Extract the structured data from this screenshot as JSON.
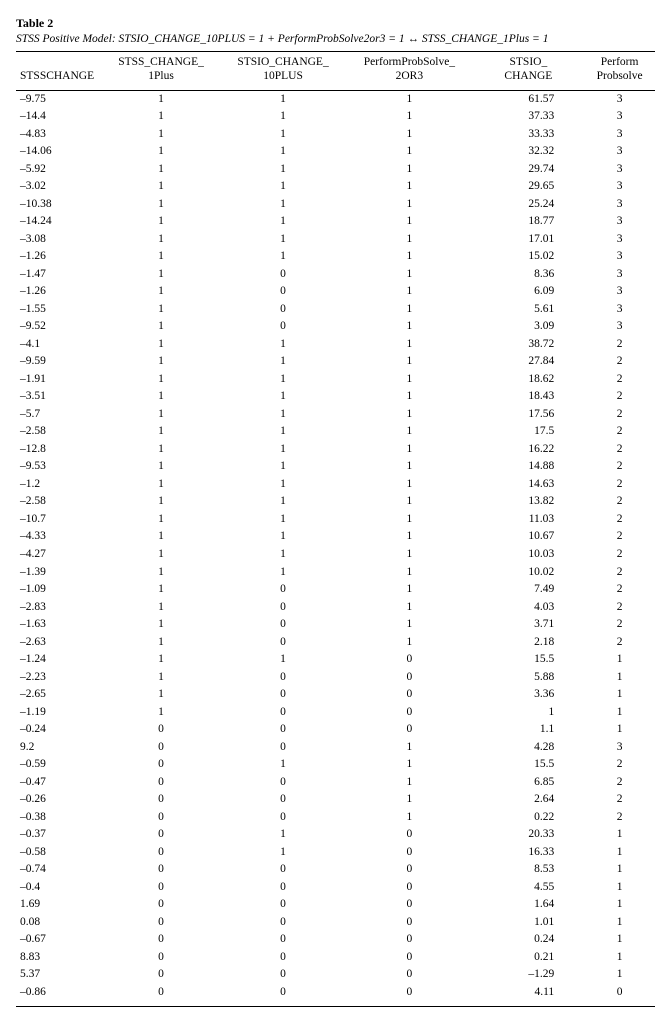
{
  "table": {
    "label": "Table 2",
    "caption": "STSS Positive Model: STSIO_CHANGE_10PLUS = 1 + PerformProbSolve2or3 = 1 ↔ STSS_CHANGE_1Plus = 1",
    "columns": [
      "STSSCHANGE",
      "STSS_CHANGE_ 1Plus",
      "STSIO_CHANGE_ 10PLUS",
      "PerformProbSolve_ 2OR3",
      "STSIO_ CHANGE",
      "Perform Probsolve"
    ],
    "col_align": [
      "left",
      "center",
      "center",
      "center",
      "right",
      "center"
    ],
    "rows": [
      [
        "–9.75",
        "1",
        "1",
        "1",
        "61.57",
        "3"
      ],
      [
        "–14.4",
        "1",
        "1",
        "1",
        "37.33",
        "3"
      ],
      [
        "–4.83",
        "1",
        "1",
        "1",
        "33.33",
        "3"
      ],
      [
        "–14.06",
        "1",
        "1",
        "1",
        "32.32",
        "3"
      ],
      [
        "–5.92",
        "1",
        "1",
        "1",
        "29.74",
        "3"
      ],
      [
        "–3.02",
        "1",
        "1",
        "1",
        "29.65",
        "3"
      ],
      [
        "–10.38",
        "1",
        "1",
        "1",
        "25.24",
        "3"
      ],
      [
        "–14.24",
        "1",
        "1",
        "1",
        "18.77",
        "3"
      ],
      [
        "–3.08",
        "1",
        "1",
        "1",
        "17.01",
        "3"
      ],
      [
        "–1.26",
        "1",
        "1",
        "1",
        "15.02",
        "3"
      ],
      [
        "–1.47",
        "1",
        "0",
        "1",
        "8.36",
        "3"
      ],
      [
        "–1.26",
        "1",
        "0",
        "1",
        "6.09",
        "3"
      ],
      [
        "–1.55",
        "1",
        "0",
        "1",
        "5.61",
        "3"
      ],
      [
        "–9.52",
        "1",
        "0",
        "1",
        "3.09",
        "3"
      ],
      [
        "–4.1",
        "1",
        "1",
        "1",
        "38.72",
        "2"
      ],
      [
        "–9.59",
        "1",
        "1",
        "1",
        "27.84",
        "2"
      ],
      [
        "–1.91",
        "1",
        "1",
        "1",
        "18.62",
        "2"
      ],
      [
        "–3.51",
        "1",
        "1",
        "1",
        "18.43",
        "2"
      ],
      [
        "–5.7",
        "1",
        "1",
        "1",
        "17.56",
        "2"
      ],
      [
        "–2.58",
        "1",
        "1",
        "1",
        "17.5",
        "2"
      ],
      [
        "–12.8",
        "1",
        "1",
        "1",
        "16.22",
        "2"
      ],
      [
        "–9.53",
        "1",
        "1",
        "1",
        "14.88",
        "2"
      ],
      [
        "–1.2",
        "1",
        "1",
        "1",
        "14.63",
        "2"
      ],
      [
        "–2.58",
        "1",
        "1",
        "1",
        "13.82",
        "2"
      ],
      [
        "–10.7",
        "1",
        "1",
        "1",
        "11.03",
        "2"
      ],
      [
        "–4.33",
        "1",
        "1",
        "1",
        "10.67",
        "2"
      ],
      [
        "–4.27",
        "1",
        "1",
        "1",
        "10.03",
        "2"
      ],
      [
        "–1.39",
        "1",
        "1",
        "1",
        "10.02",
        "2"
      ],
      [
        "–1.09",
        "1",
        "0",
        "1",
        "7.49",
        "2"
      ],
      [
        "–2.83",
        "1",
        "0",
        "1",
        "4.03",
        "2"
      ],
      [
        "–1.63",
        "1",
        "0",
        "1",
        "3.71",
        "2"
      ],
      [
        "–2.63",
        "1",
        "0",
        "1",
        "2.18",
        "2"
      ],
      [
        "–1.24",
        "1",
        "1",
        "0",
        "15.5",
        "1"
      ],
      [
        "–2.23",
        "1",
        "0",
        "0",
        "5.88",
        "1"
      ],
      [
        "–2.65",
        "1",
        "0",
        "0",
        "3.36",
        "1"
      ],
      [
        "–1.19",
        "1",
        "0",
        "0",
        "1",
        "1"
      ],
      [
        "–0.24",
        "0",
        "0",
        "0",
        "1.1",
        "1"
      ],
      [
        "9.2",
        "0",
        "0",
        "1",
        "4.28",
        "3"
      ],
      [
        "–0.59",
        "0",
        "1",
        "1",
        "15.5",
        "2"
      ],
      [
        "–0.47",
        "0",
        "0",
        "1",
        "6.85",
        "2"
      ],
      [
        "–0.26",
        "0",
        "0",
        "1",
        "2.64",
        "2"
      ],
      [
        "–0.38",
        "0",
        "0",
        "1",
        "0.22",
        "2"
      ],
      [
        "–0.37",
        "0",
        "1",
        "0",
        "20.33",
        "1"
      ],
      [
        "–0.58",
        "0",
        "1",
        "0",
        "16.33",
        "1"
      ],
      [
        "–0.74",
        "0",
        "0",
        "0",
        "8.53",
        "1"
      ],
      [
        "–0.4",
        "0",
        "0",
        "0",
        "4.55",
        "1"
      ],
      [
        "1.69",
        "0",
        "0",
        "0",
        "1.64",
        "1"
      ],
      [
        "0.08",
        "0",
        "0",
        "0",
        "1.01",
        "1"
      ],
      [
        "–0.67",
        "0",
        "0",
        "0",
        "0.24",
        "1"
      ],
      [
        "8.83",
        "0",
        "0",
        "0",
        "0.21",
        "1"
      ],
      [
        "5.37",
        "0",
        "0",
        "0",
        "–1.29",
        "1"
      ],
      [
        "–0.86",
        "0",
        "0",
        "0",
        "4.11",
        "0"
      ]
    ]
  },
  "style": {
    "font_family": "Times New Roman",
    "font_size_pt": 12,
    "header_border_color": "#000000",
    "background_color": "#ffffff",
    "text_color": "#000000"
  }
}
